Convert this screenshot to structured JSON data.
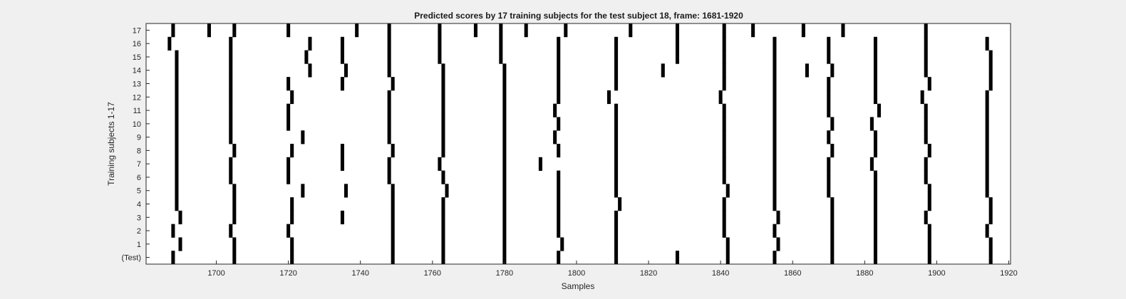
{
  "chart_data": {
    "type": "heatmap",
    "title": "Predicted scores by 17 training subjects for the test subject 18, frame: 1681-1920",
    "xlabel": "Samples",
    "ylabel": "Training subjects 1-17",
    "xlim": [
      1681,
      1920
    ],
    "x_ticks": [
      1700,
      1720,
      1740,
      1760,
      1780,
      1800,
      1820,
      1840,
      1860,
      1880,
      1900,
      1920
    ],
    "y_tick_labels": [
      "(Test)",
      "1",
      "2",
      "3",
      "4",
      "5",
      "6",
      "7",
      "8",
      "9",
      "10",
      "11",
      "12",
      "13",
      "14",
      "15",
      "16",
      "17"
    ],
    "grid": false,
    "mark_color": "#000000",
    "background_color": "#ffffff",
    "rows": [
      {
        "label": "(Test)",
        "x": [
          1688,
          1705,
          1721,
          1749,
          1763,
          1780,
          1795,
          1811,
          1828,
          1842,
          1855,
          1871,
          1883,
          1898,
          1915
        ]
      },
      {
        "label": "1",
        "x": [
          1690,
          1705,
          1721,
          1749,
          1763,
          1780,
          1796,
          1811,
          1842,
          1856,
          1871,
          1883,
          1898,
          1915
        ]
      },
      {
        "label": "2",
        "x": [
          1688,
          1704,
          1720,
          1749,
          1763,
          1780,
          1795,
          1811,
          1841,
          1855,
          1871,
          1883,
          1898,
          1914
        ]
      },
      {
        "label": "3",
        "x": [
          1690,
          1705,
          1721,
          1735,
          1749,
          1763,
          1780,
          1795,
          1811,
          1841,
          1856,
          1871,
          1883,
          1897,
          1915
        ]
      },
      {
        "label": "4",
        "x": [
          1689,
          1705,
          1721,
          1749,
          1763,
          1780,
          1795,
          1812,
          1841,
          1855,
          1871,
          1883,
          1898,
          1915
        ]
      },
      {
        "label": "5",
        "x": [
          1689,
          1705,
          1724,
          1736,
          1749,
          1764,
          1780,
          1795,
          1811,
          1842,
          1855,
          1870,
          1883,
          1898,
          1914
        ]
      },
      {
        "label": "6",
        "x": [
          1689,
          1704,
          1720,
          1748,
          1763,
          1780,
          1795,
          1811,
          1841,
          1855,
          1870,
          1883,
          1897,
          1914
        ]
      },
      {
        "label": "7",
        "x": [
          1689,
          1704,
          1720,
          1735,
          1748,
          1762,
          1780,
          1790,
          1811,
          1841,
          1855,
          1870,
          1882,
          1897,
          1914
        ]
      },
      {
        "label": "8",
        "x": [
          1689,
          1705,
          1721,
          1735,
          1749,
          1763,
          1780,
          1795,
          1811,
          1841,
          1855,
          1871,
          1883,
          1898,
          1914
        ]
      },
      {
        "label": "9",
        "x": [
          1689,
          1704,
          1724,
          1748,
          1763,
          1780,
          1794,
          1811,
          1841,
          1855,
          1870,
          1883,
          1897,
          1914
        ]
      },
      {
        "label": "10",
        "x": [
          1689,
          1704,
          1720,
          1748,
          1763,
          1780,
          1795,
          1811,
          1841,
          1855,
          1871,
          1882,
          1897,
          1914
        ]
      },
      {
        "label": "11",
        "x": [
          1689,
          1704,
          1720,
          1748,
          1763,
          1780,
          1794,
          1811,
          1841,
          1855,
          1870,
          1884,
          1897,
          1914
        ]
      },
      {
        "label": "12",
        "x": [
          1689,
          1704,
          1721,
          1748,
          1763,
          1780,
          1795,
          1809,
          1840,
          1855,
          1870,
          1883,
          1896,
          1914
        ]
      },
      {
        "label": "13",
        "x": [
          1689,
          1704,
          1720,
          1735,
          1749,
          1763,
          1780,
          1795,
          1811,
          1841,
          1855,
          1870,
          1883,
          1898,
          1915
        ]
      },
      {
        "label": "14",
        "x": [
          1689,
          1704,
          1726,
          1736,
          1748,
          1763,
          1780,
          1795,
          1811,
          1824,
          1841,
          1855,
          1864,
          1871,
          1883,
          1897,
          1915
        ]
      },
      {
        "label": "15",
        "x": [
          1689,
          1704,
          1725,
          1735,
          1748,
          1762,
          1779,
          1795,
          1811,
          1828,
          1841,
          1855,
          1870,
          1883,
          1897,
          1915
        ]
      },
      {
        "label": "16",
        "x": [
          1687,
          1704,
          1726,
          1735,
          1748,
          1762,
          1779,
          1795,
          1811,
          1828,
          1841,
          1855,
          1870,
          1883,
          1897,
          1914
        ]
      },
      {
        "label": "17",
        "x": [
          1688,
          1698,
          1705,
          1720,
          1739,
          1748,
          1762,
          1772,
          1779,
          1786,
          1797,
          1815,
          1828,
          1841,
          1849,
          1863,
          1874,
          1897
        ]
      }
    ]
  }
}
